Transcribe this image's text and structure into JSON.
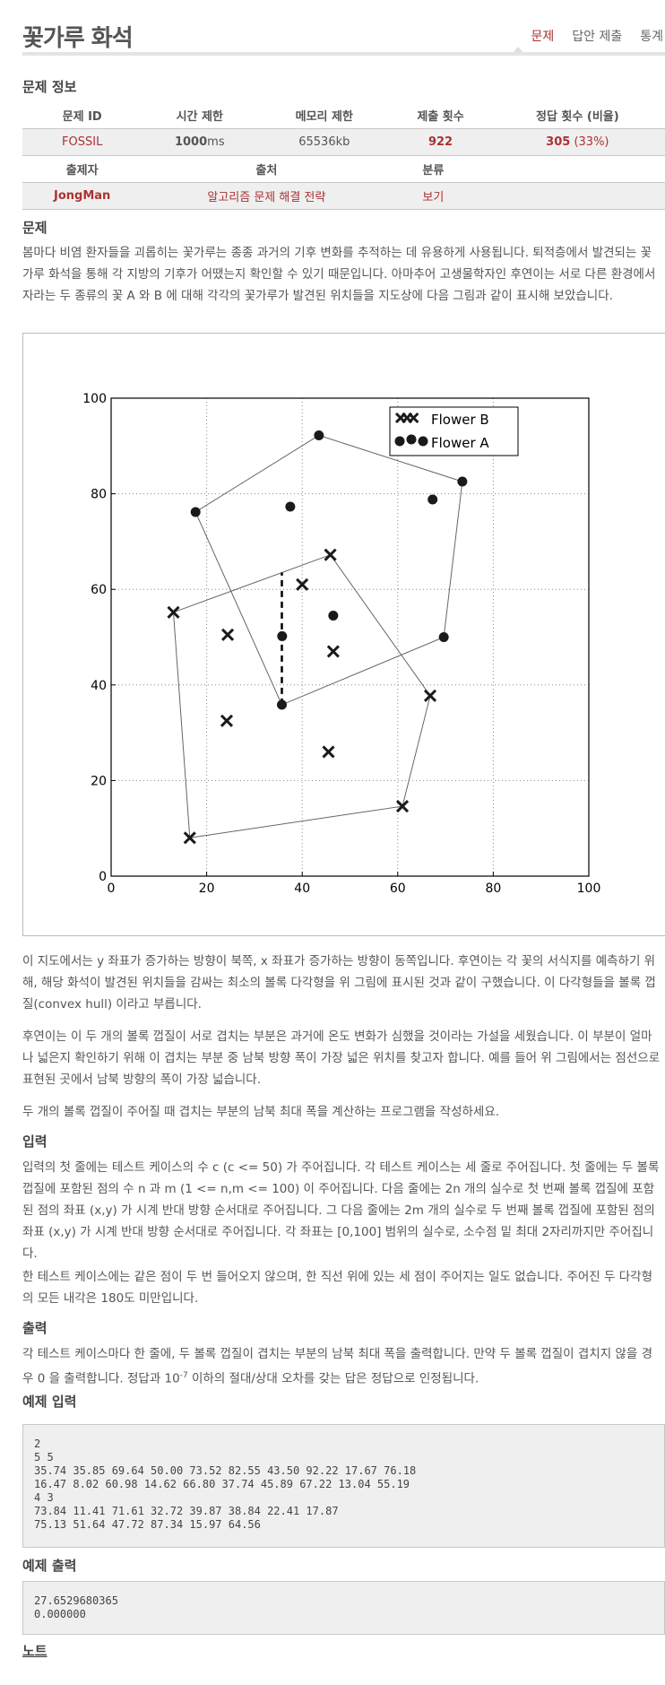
{
  "header": {
    "title": "꽃가루 화석",
    "tabs": [
      {
        "label": "문제",
        "active": true
      },
      {
        "label": "답안 제출",
        "active": false
      },
      {
        "label": "통계",
        "active": false
      }
    ]
  },
  "info": {
    "heading": "문제 정보",
    "headers1": [
      "문제 ID",
      "시간 제한",
      "메모리 제한",
      "제출 횟수",
      "정답 횟수 (비율)"
    ],
    "problem_id": "FOSSIL",
    "time_limit_num": "1000",
    "time_limit_unit": "ms",
    "memory_limit": "65536kb",
    "submissions": "922",
    "accepted": "305",
    "accepted_ratio": "(33%)",
    "headers2": [
      "출제자",
      "출처",
      "분류"
    ],
    "author": "JongMan",
    "source": "알고리즘 문제 해결 전략",
    "category": "보기"
  },
  "problem": {
    "heading": "문제",
    "p1": "봄마다 비염 환자들을 괴롭히는 꽃가루는 종종 과거의 기후 변화를 추적하는 데 유용하게 사용됩니다. 퇴적층에서 발견되는 꽃가루 화석을 통해 각 지방의 기후가 어땠는지 확인할 수 있기 때문입니다. 아마추어 고생물학자인 후연이는 서로 다른 환경에서 자라는 두 종류의 꽃 A 와 B 에 대해 각각의 꽃가루가 발견된 위치들을 지도상에 다음 그림과 같이 표시해 보았습니다.",
    "p2": "이 지도에서는 y 좌표가 증가하는 방향이 북쪽, x 좌표가 증가하는 방향이 동쪽입니다. 후연이는 각 꽃의 서식지를 예측하기 위해, 해당 화석이 발견된 위치들을 감싸는 최소의 볼록 다각형을 위 그림에 표시된 것과 같이 구했습니다. 이 다각형들을 볼록 껍질(convex hull) 이라고 부릅니다.",
    "p3": "후연이는 이 두 개의 볼록 껍질이 서로 겹치는 부분은 과거에 온도 변화가 심했을 것이라는 가설을 세웠습니다. 이 부분이 얼마나 넓은지 확인하기 위해 이 겹치는 부분 중 남북 방향 폭이 가장 넓은 위치를 찾고자 합니다. 예를 들어 위 그림에서는 점선으로 표현된 곳에서 남북 방향의 폭이 가장 넓습니다.",
    "p4": "두 개의 볼록 껍질이 주어질 때 겹치는 부분의 남북 최대 폭을 계산하는 프로그램을 작성하세요."
  },
  "input": {
    "heading": "입력",
    "p1": "입력의 첫 줄에는 테스트 케이스의 수 c (c <= 50) 가 주어집니다. 각 테스트 케이스는 세 줄로 주어집니다. 첫 줄에는 두 볼록 껍질에 포함된 점의 수 n 과 m (1 <= n,m <= 100) 이 주어집니다. 다음 줄에는 2n 개의 실수로 첫 번째 볼록 껍질에 포함된 점의 좌표 (x,y) 가 시계 반대 방향 순서대로 주어집니다. 그 다음 줄에는 2m 개의 실수로 두 번째 볼록 껍질에 포함된 점의 좌표 (x,y) 가 시계 반대 방향 순서대로 주어집니다. 각 좌표는 [0,100] 범위의 실수로, 소수점 밑 최대 2자리까지만 주어집니다.",
    "p2": "한 테스트 케이스에는 같은 점이 두 번 들어오지 않으며, 한 직선 위에 있는 세 점이 주어지는 일도 없습니다. 주어진 두 다각형의 모든 내각은 180도 미만입니다."
  },
  "output": {
    "heading": "출력",
    "p1_a": "각 테스트 케이스마다 한 줄에, 두 볼록 껍질이 겹치는 부분의 남북 최대 폭을 출력합니다. 만약 두 볼록 껍질이 겹치지 않을 경우 0 을 출력합니다. 정답과 10",
    "p1_sup": "-7",
    "p1_b": " 이하의 절대/상대 오차를 갖는 답은 정답으로 인정됩니다."
  },
  "sample_input": {
    "heading": "예제 입력",
    "text": "2\n5 5\n35.74 35.85 69.64 50.00 73.52 82.55 43.50 92.22 17.67 76.18\n16.47 8.02 60.98 14.62 66.80 37.74 45.89 67.22 13.04 55.19\n4 3\n73.84 11.41 71.61 32.72 39.87 38.84 22.41 17.87\n75.13 51.64 47.72 87.34 15.97 64.56"
  },
  "sample_output": {
    "heading": "예제 출력",
    "text": "27.6529680365\n0.000000"
  },
  "note": {
    "heading": "노트"
  },
  "chart_data": {
    "type": "scatter",
    "xlim": [
      0,
      100
    ],
    "ylim": [
      0,
      100
    ],
    "xticks": [
      "0",
      "20",
      "40",
      "60",
      "80",
      "100"
    ],
    "yticks": [
      "0",
      "20",
      "40",
      "60",
      "80",
      "100"
    ],
    "grid": true,
    "legend_placement": "top-right",
    "series": [
      {
        "name": "Flower B",
        "marker": "x",
        "hull": [
          [
            16.47,
            8.02
          ],
          [
            60.98,
            14.62
          ],
          [
            66.8,
            37.74
          ],
          [
            45.89,
            67.22
          ],
          [
            13.04,
            55.19
          ]
        ],
        "interior": [
          [
            40.0,
            61.0
          ],
          [
            24.4,
            50.5
          ],
          [
            46.5,
            47.0
          ],
          [
            24.2,
            32.5
          ],
          [
            45.5,
            26.0
          ]
        ]
      },
      {
        "name": "Flower A",
        "marker": "o",
        "hull": [
          [
            35.74,
            35.85
          ],
          [
            69.64,
            50.0
          ],
          [
            73.52,
            82.55
          ],
          [
            43.5,
            92.22
          ],
          [
            17.67,
            76.18
          ]
        ],
        "interior": [
          [
            37.5,
            77.3
          ],
          [
            67.3,
            78.8
          ],
          [
            46.5,
            54.5
          ],
          [
            35.8,
            50.2
          ]
        ]
      }
    ],
    "dashed_segment": [
      [
        35.74,
        35.85
      ],
      [
        35.74,
        63.5
      ]
    ],
    "colors": {
      "marker": "#1a1a1a",
      "hull_line": "#666666",
      "grid": "#888888"
    }
  }
}
